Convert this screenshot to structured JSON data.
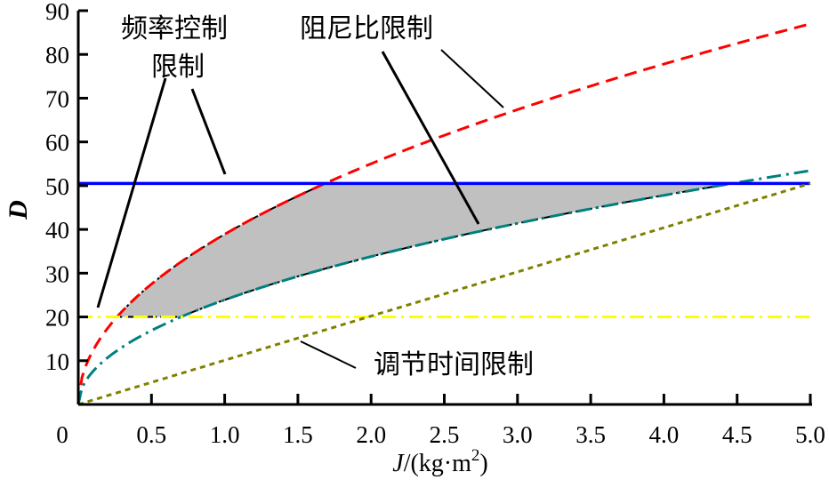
{
  "chart_data": {
    "type": "line",
    "title": "",
    "xlabel_italic": "J",
    "xlabel_rest": "/(kg·m",
    "xlabel_sup": "2",
    "xlabel_close": ")",
    "ylabel": "D",
    "xlim": [
      0,
      5
    ],
    "ylim": [
      0,
      90
    ],
    "x_ticks": [
      "0",
      "0.5",
      "1.0",
      "1.5",
      "2.0",
      "2.5",
      "3.0",
      "3.5",
      "4.0",
      "4.5",
      "5.0"
    ],
    "x_tick_values": [
      0,
      0.5,
      1,
      1.5,
      2,
      2.5,
      3,
      3.5,
      4,
      4.5,
      5
    ],
    "y_ticks": [
      "10",
      "20",
      "30",
      "40",
      "50",
      "60",
      "70",
      "80",
      "90"
    ],
    "y_tick_values": [
      10,
      20,
      30,
      40,
      50,
      60,
      70,
      80,
      90
    ],
    "grid": false,
    "series": [
      {
        "id": "damping-upper",
        "color": "#ff0000",
        "style": "dashed",
        "formula_coef": 38.9,
        "x": [
          0,
          0.28,
          0.5,
          1.0,
          1.5,
          1.68,
          2.0,
          2.5,
          3.0,
          3.5,
          4.0,
          4.5,
          5.0
        ],
        "y": [
          0,
          20.6,
          27.5,
          38.9,
          47.6,
          50.4,
          55.0,
          61.5,
          67.4,
          72.8,
          77.8,
          82.5,
          87.0
        ]
      },
      {
        "id": "damping-lower",
        "color": "#008080",
        "style": "dashdot",
        "formula_coef": 23.9,
        "x": [
          0,
          0.5,
          0.7,
          1.0,
          1.5,
          2.0,
          2.5,
          3.0,
          3.5,
          4.0,
          4.5,
          5.0
        ],
        "y": [
          0,
          16.9,
          20.0,
          23.9,
          29.3,
          33.8,
          37.8,
          41.4,
          44.7,
          47.8,
          50.7,
          53.4
        ]
      },
      {
        "id": "frequency-limit",
        "color": "#0000ff",
        "style": "solid",
        "x": [
          0,
          5
        ],
        "y": [
          50.5,
          50.5
        ]
      },
      {
        "id": "settling-lower-limit",
        "color": "#ffff00",
        "style": "dashdot",
        "x": [
          0,
          5
        ],
        "y": [
          20,
          20
        ]
      },
      {
        "id": "settling-time-limit",
        "color": "#808000",
        "style": "dotted",
        "x": [
          0,
          5
        ],
        "y": [
          0,
          50.5
        ]
      }
    ],
    "feasible_region": {
      "color": "#c0c0c0",
      "bounds": "between red and teal curves, 20 ≤ D ≤ 50.5"
    },
    "annotations": [
      {
        "text": "频率控制"
      },
      {
        "text": "限制"
      },
      {
        "text": "阻尼比限制"
      },
      {
        "text": "调节时间限制"
      }
    ]
  }
}
